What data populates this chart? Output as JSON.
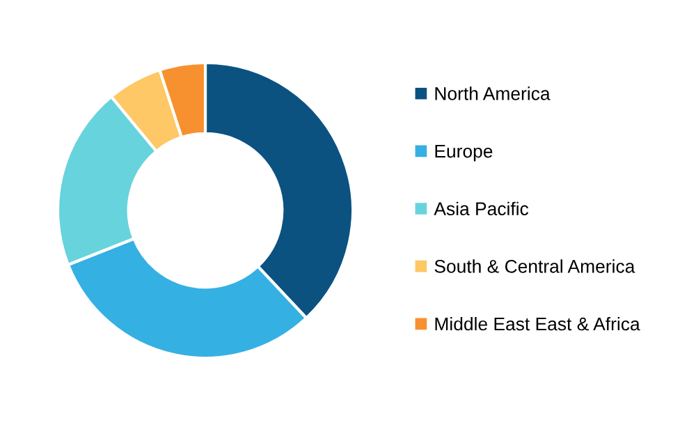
{
  "chart_data": {
    "type": "donut",
    "categories": [
      "North America",
      "Europe",
      "Asia Pacific",
      "South & Central America",
      "Middle East East & Africa"
    ],
    "values": [
      38,
      31,
      20,
      6,
      5
    ],
    "colors": [
      "#0b5281",
      "#35b0e3",
      "#67d3dc",
      "#fdc865",
      "#f7912f"
    ],
    "legend": "right"
  }
}
